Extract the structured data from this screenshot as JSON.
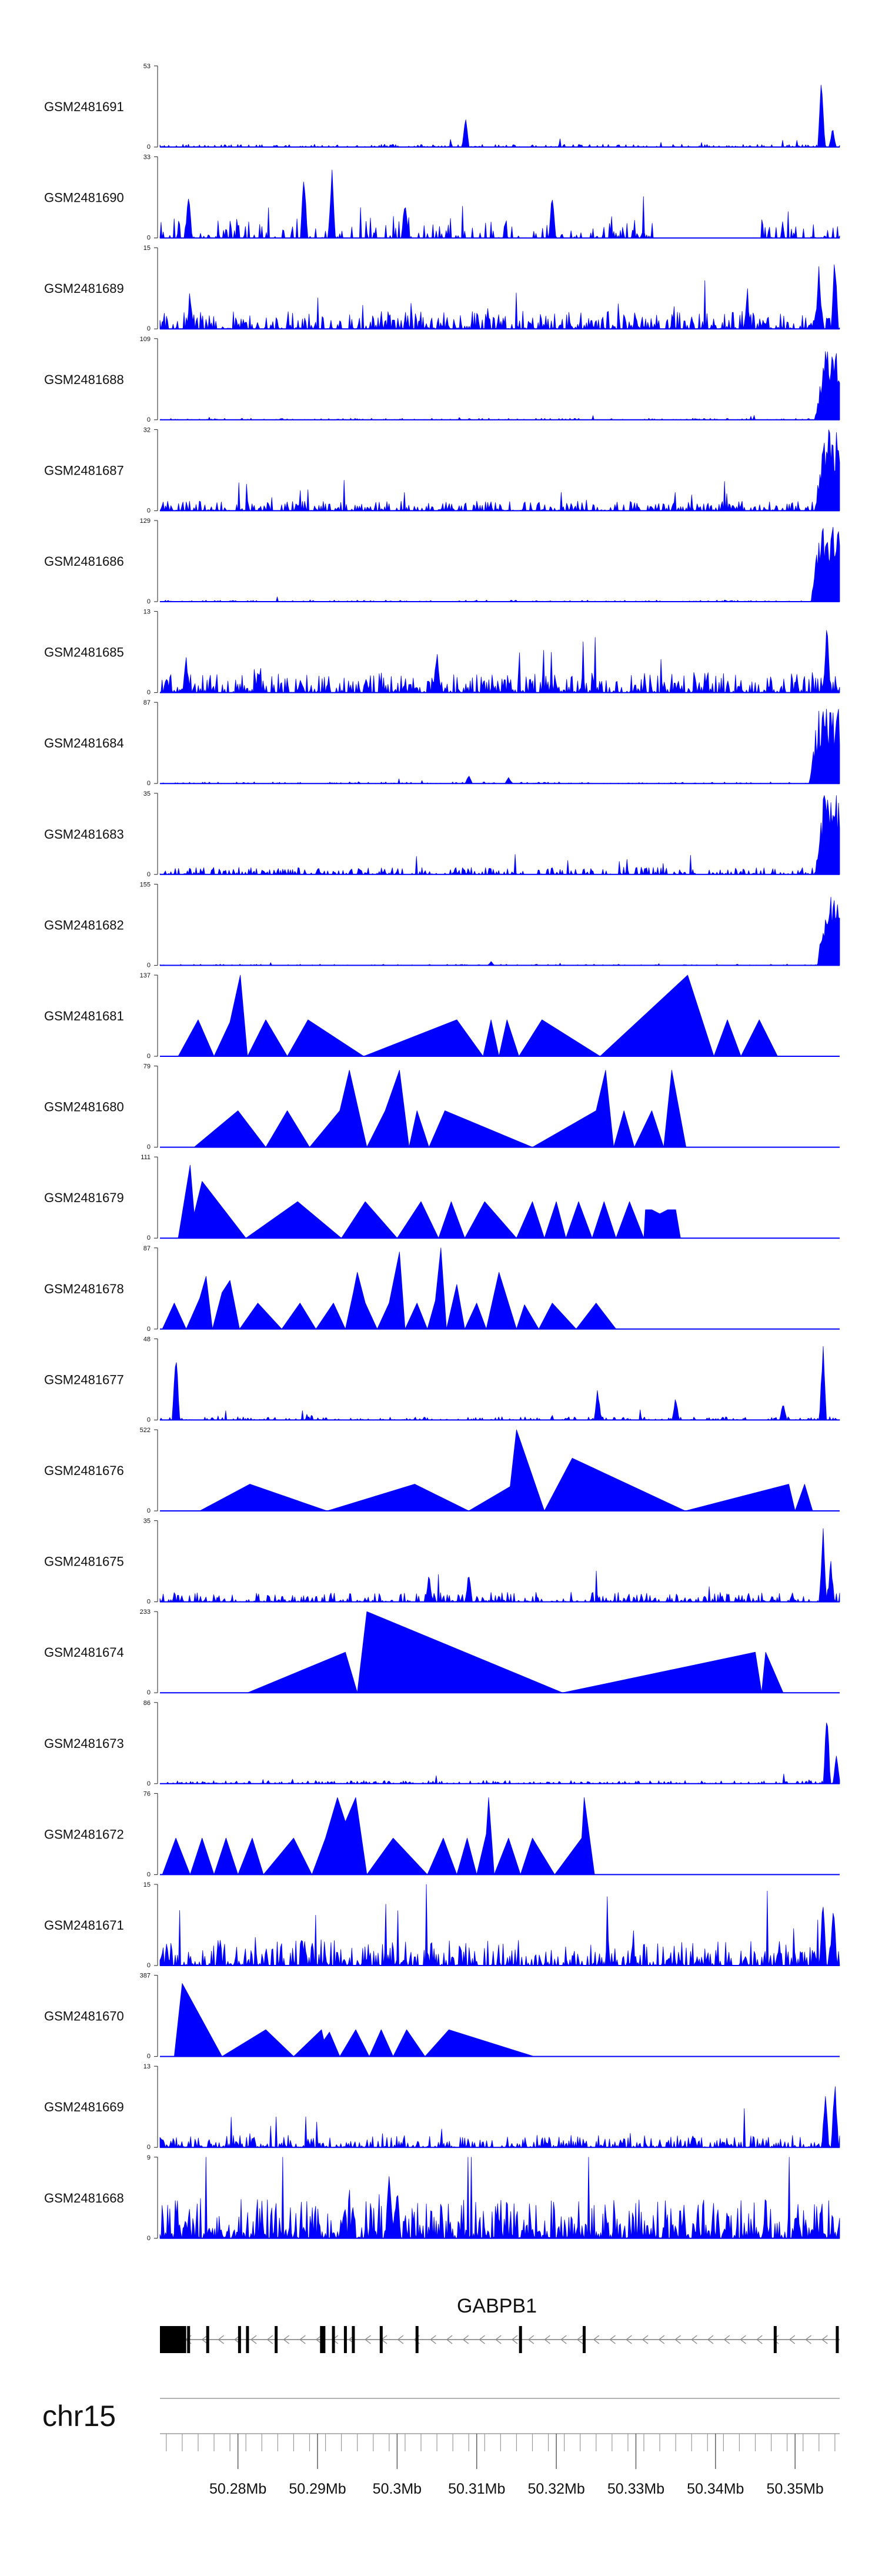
{
  "chart_data": {
    "type": "area",
    "color": "#0000ff",
    "x_range_mb": [
      50.2702,
      50.3556
    ],
    "tracks": [
      {
        "name": "GSM2481691",
        "ymax": "53",
        "ymin": "0",
        "style": "noise",
        "seed": 1,
        "base": 0.035,
        "density": 0.5,
        "peaks": [
          [
            50.3086,
            0.38
          ],
          [
            50.3533,
            1.0
          ],
          [
            50.3547,
            0.25
          ]
        ]
      },
      {
        "name": "GSM2481690",
        "ymax": "33",
        "ymin": "0",
        "style": "peaky",
        "seed": 2,
        "base": 0.28,
        "density": 0.4,
        "peaks": [
          [
            50.2738,
            0.62
          ],
          [
            50.2883,
            0.95
          ],
          [
            50.2918,
            0.94
          ],
          [
            50.301,
            0.55
          ],
          [
            50.3195,
            0.6
          ]
        ],
        "gaps": [
          [
            50.3325,
            50.3455
          ]
        ]
      },
      {
        "name": "GSM2481689",
        "ymax": "15",
        "ymin": "0",
        "style": "noise",
        "seed": 3,
        "base": 0.22,
        "density": 0.75,
        "peaks": [
          [
            50.274,
            0.4
          ],
          [
            50.344,
            0.45
          ],
          [
            50.353,
            0.8
          ],
          [
            50.355,
            1.0
          ]
        ]
      },
      {
        "name": "GSM2481688",
        "ymax": "109",
        "ymin": "0",
        "style": "noise",
        "seed": 4,
        "base": 0.02,
        "density": 0.4,
        "tail": [
          50.3525,
          0.95
        ]
      },
      {
        "name": "GSM2481687",
        "ymax": "32",
        "ymin": "0",
        "style": "noise",
        "seed": 5,
        "base": 0.12,
        "density": 0.7,
        "tail": [
          50.3525,
          1.0
        ]
      },
      {
        "name": "GSM2481686",
        "ymax": "129",
        "ymin": "0",
        "style": "noise",
        "seed": 6,
        "base": 0.02,
        "density": 0.4,
        "tail": [
          50.352,
          0.95
        ]
      },
      {
        "name": "GSM2481685",
        "ymax": "13",
        "ymin": "0",
        "style": "noise",
        "seed": 7,
        "base": 0.25,
        "density": 0.8,
        "peaks": [
          [
            50.2735,
            0.45
          ],
          [
            50.305,
            0.6
          ],
          [
            50.354,
            0.95
          ]
        ]
      },
      {
        "name": "GSM2481684",
        "ymax": "87",
        "ymin": "0",
        "style": "noise",
        "seed": 8,
        "base": 0.02,
        "density": 0.4,
        "peaks": [
          [
            50.309,
            0.12
          ],
          [
            50.314,
            0.08
          ]
        ],
        "tail": [
          50.3518,
          0.95
        ]
      },
      {
        "name": "GSM2481683",
        "ymax": "35",
        "ymin": "0",
        "style": "noise",
        "seed": 9,
        "base": 0.09,
        "density": 0.6,
        "tail": [
          50.3525,
          1.0
        ]
      },
      {
        "name": "GSM2481682",
        "ymax": "155",
        "ymin": "0",
        "style": "noise",
        "seed": 10,
        "base": 0.015,
        "density": 0.35,
        "peaks": [
          [
            50.3118,
            0.05
          ]
        ],
        "tail": [
          50.3528,
          0.95
        ]
      },
      {
        "name": "GSM2481681",
        "ymax": "137",
        "ymin": "0",
        "style": "tri",
        "points": [
          [
            50.2725,
            0
          ],
          [
            50.275,
            0.45
          ],
          [
            50.277,
            0
          ],
          [
            50.279,
            0.42
          ],
          [
            50.2803,
            1.0
          ],
          [
            50.2812,
            0
          ],
          [
            50.2835,
            0.45
          ],
          [
            50.2862,
            0
          ],
          [
            50.2888,
            0.45
          ],
          [
            50.2958,
            0
          ],
          [
            50.3075,
            0.45
          ],
          [
            50.3108,
            0
          ],
          [
            50.3118,
            0.45
          ],
          [
            50.3128,
            0
          ],
          [
            50.3138,
            0.45
          ],
          [
            50.3153,
            0
          ],
          [
            50.3182,
            0.45
          ],
          [
            50.3255,
            0
          ],
          [
            50.3365,
            1.0
          ],
          [
            50.3398,
            0
          ],
          [
            50.3415,
            0.45
          ],
          [
            50.3432,
            0
          ],
          [
            50.3455,
            0.45
          ],
          [
            50.3478,
            0
          ]
        ]
      },
      {
        "name": "GSM2481680",
        "ymax": "79",
        "ymin": "0",
        "style": "tri",
        "points": [
          [
            50.2745,
            0
          ],
          [
            50.28,
            0.45
          ],
          [
            50.2835,
            0
          ],
          [
            50.2862,
            0.45
          ],
          [
            50.289,
            0
          ],
          [
            50.2928,
            0.45
          ],
          [
            50.294,
            0.95
          ],
          [
            50.2962,
            0
          ],
          [
            50.2985,
            0.45
          ],
          [
            50.3003,
            0.95
          ],
          [
            50.3015,
            0
          ],
          [
            50.3025,
            0.45
          ],
          [
            50.304,
            0
          ],
          [
            50.306,
            0.45
          ],
          [
            50.317,
            0
          ],
          [
            50.325,
            0.45
          ],
          [
            50.3262,
            0.95
          ],
          [
            50.3272,
            0
          ],
          [
            50.3285,
            0.45
          ],
          [
            50.3298,
            0
          ],
          [
            50.332,
            0.45
          ],
          [
            50.3335,
            0
          ],
          [
            50.3345,
            0.95
          ],
          [
            50.3363,
            0
          ]
        ]
      },
      {
        "name": "GSM2481679",
        "ymax": "111",
        "ymin": "0",
        "style": "tri",
        "points": [
          [
            50.2725,
            0
          ],
          [
            50.274,
            0.9
          ],
          [
            50.2745,
            0.3
          ],
          [
            50.2755,
            0.7
          ],
          [
            50.281,
            0
          ],
          [
            50.2875,
            0.45
          ],
          [
            50.293,
            0
          ],
          [
            50.296,
            0.45
          ],
          [
            50.3,
            0
          ],
          [
            50.303,
            0.45
          ],
          [
            50.3052,
            0
          ],
          [
            50.3068,
            0.45
          ],
          [
            50.3085,
            0
          ],
          [
            50.311,
            0.45
          ],
          [
            50.315,
            0
          ],
          [
            50.317,
            0.45
          ],
          [
            50.3185,
            0
          ],
          [
            50.32,
            0.45
          ],
          [
            50.3212,
            0
          ],
          [
            50.3228,
            0.45
          ],
          [
            50.3245,
            0
          ],
          [
            50.326,
            0.45
          ],
          [
            50.3275,
            0
          ],
          [
            50.3292,
            0.45
          ],
          [
            50.331,
            0
          ],
          [
            50.3312,
            0.35
          ],
          [
            50.332,
            0.35
          ],
          [
            50.333,
            0.3
          ],
          [
            50.334,
            0.35
          ],
          [
            50.335,
            0.35
          ],
          [
            50.3356,
            0
          ]
        ]
      },
      {
        "name": "GSM2481678",
        "ymax": "87",
        "ymin": "0",
        "style": "tri",
        "points": [
          [
            50.2705,
            0
          ],
          [
            50.272,
            0.32
          ],
          [
            50.2735,
            0
          ],
          [
            50.2752,
            0.38
          ],
          [
            50.276,
            0.65
          ],
          [
            50.2768,
            0
          ],
          [
            50.278,
            0.45
          ],
          [
            50.279,
            0.6
          ],
          [
            50.2802,
            0
          ],
          [
            50.2825,
            0.32
          ],
          [
            50.2855,
            0
          ],
          [
            50.2878,
            0.32
          ],
          [
            50.2898,
            0
          ],
          [
            50.292,
            0.32
          ],
          [
            50.2935,
            0
          ],
          [
            50.2945,
            0.45
          ],
          [
            50.295,
            0.7
          ],
          [
            50.296,
            0.32
          ],
          [
            50.2975,
            0
          ],
          [
            50.299,
            0.32
          ],
          [
            50.3003,
            0.95
          ],
          [
            50.301,
            0
          ],
          [
            50.3025,
            0.32
          ],
          [
            50.3038,
            0
          ],
          [
            50.3048,
            0.35
          ],
          [
            50.3055,
            1.0
          ],
          [
            50.3062,
            0
          ],
          [
            50.3075,
            0.55
          ],
          [
            50.3085,
            0
          ],
          [
            50.31,
            0.32
          ],
          [
            50.3112,
            0
          ],
          [
            50.3128,
            0.7
          ],
          [
            50.315,
            0
          ],
          [
            50.316,
            0.3
          ],
          [
            50.3178,
            0
          ],
          [
            50.3195,
            0.32
          ],
          [
            50.3225,
            0
          ],
          [
            50.325,
            0.32
          ],
          [
            50.3275,
            0
          ]
        ]
      },
      {
        "name": "GSM2481677",
        "ymax": "48",
        "ymin": "0",
        "style": "noise",
        "seed": 11,
        "base": 0.04,
        "density": 0.5,
        "peaks": [
          [
            50.2722,
            1.0
          ],
          [
            50.3252,
            0.4
          ],
          [
            50.335,
            0.3
          ],
          [
            50.3485,
            0.25
          ],
          [
            50.3535,
            1.0
          ]
        ]
      },
      {
        "name": "GSM2481676",
        "ymax": "522",
        "ymin": "0",
        "style": "tri",
        "points": [
          [
            50.2752,
            0
          ],
          [
            50.2815,
            0.33
          ],
          [
            50.2912,
            0
          ],
          [
            50.3022,
            0.33
          ],
          [
            50.309,
            0
          ],
          [
            50.3142,
            0.3
          ],
          [
            50.315,
            1.0
          ],
          [
            50.3185,
            0
          ],
          [
            50.322,
            0.65
          ],
          [
            50.3362,
            0
          ],
          [
            50.3492,
            0.33
          ],
          [
            50.35,
            0
          ],
          [
            50.3512,
            0.33
          ],
          [
            50.3522,
            0
          ]
        ]
      },
      {
        "name": "GSM2481675",
        "ymax": "35",
        "ymin": "0",
        "style": "noise",
        "seed": 12,
        "base": 0.12,
        "density": 0.7,
        "peaks": [
          [
            50.304,
            0.35
          ],
          [
            50.309,
            0.4
          ],
          [
            50.3535,
            1.0
          ],
          [
            50.3545,
            0.55
          ]
        ]
      },
      {
        "name": "GSM2481674",
        "ymax": "233",
        "ymin": "0",
        "style": "tri",
        "points": [
          [
            50.2812,
            0
          ],
          [
            50.2935,
            0.5
          ],
          [
            50.295,
            0
          ],
          [
            50.2962,
            1.0
          ],
          [
            50.3208,
            0
          ],
          [
            50.345,
            0.5
          ],
          [
            50.3458,
            0
          ],
          [
            50.3463,
            0.5
          ],
          [
            50.3485,
            0
          ]
        ]
      },
      {
        "name": "GSM2481673",
        "ymax": "86",
        "ymin": "0",
        "style": "noise",
        "seed": 13,
        "base": 0.04,
        "density": 0.55,
        "peaks": [
          [
            50.354,
            1.0
          ],
          [
            50.3552,
            0.4
          ]
        ]
      },
      {
        "name": "GSM2481672",
        "ymax": "76",
        "ymin": "0",
        "style": "tri",
        "points": [
          [
            50.2705,
            0
          ],
          [
            50.2722,
            0.45
          ],
          [
            50.274,
            0
          ],
          [
            50.2755,
            0.45
          ],
          [
            50.277,
            0
          ],
          [
            50.2785,
            0.45
          ],
          [
            50.28,
            0
          ],
          [
            50.2818,
            0.45
          ],
          [
            50.2832,
            0
          ],
          [
            50.287,
            0.45
          ],
          [
            50.2893,
            0
          ],
          [
            50.291,
            0.45
          ],
          [
            50.2925,
            0.95
          ],
          [
            50.2935,
            0.65
          ],
          [
            50.2948,
            0.95
          ],
          [
            50.2962,
            0
          ],
          [
            50.2995,
            0.45
          ],
          [
            50.3038,
            0
          ],
          [
            50.3058,
            0.45
          ],
          [
            50.3075,
            0
          ],
          [
            50.3088,
            0.45
          ],
          [
            50.31,
            0
          ],
          [
            50.3112,
            0.5
          ],
          [
            50.3115,
            0.95
          ],
          [
            50.3122,
            0
          ],
          [
            50.314,
            0.45
          ],
          [
            50.3155,
            0
          ],
          [
            50.317,
            0.45
          ],
          [
            50.3198,
            0
          ],
          [
            50.3232,
            0.45
          ],
          [
            50.3235,
            0.95
          ],
          [
            50.3248,
            0
          ],
          [
            50.3268,
            0
          ]
        ]
      },
      {
        "name": "GSM2481671",
        "ymax": "15",
        "ymin": "0",
        "style": "noise",
        "seed": 14,
        "base": 0.32,
        "density": 0.75,
        "peaks": [
          [
            50.3535,
            0.9
          ],
          [
            50.3548,
            0.9
          ]
        ]
      },
      {
        "name": "GSM2481670",
        "ymax": "387",
        "ymin": "0",
        "style": "tri",
        "points": [
          [
            50.272,
            0
          ],
          [
            50.273,
            0.9
          ],
          [
            50.278,
            0
          ],
          [
            50.2835,
            0.33
          ],
          [
            50.287,
            0
          ],
          [
            50.2905,
            0.33
          ],
          [
            50.2908,
            0.2
          ],
          [
            50.2915,
            0.3
          ],
          [
            50.2928,
            0
          ],
          [
            50.2948,
            0.33
          ],
          [
            50.2965,
            0
          ],
          [
            50.298,
            0.33
          ],
          [
            50.2995,
            0
          ],
          [
            50.3012,
            0.33
          ],
          [
            50.3035,
            0
          ],
          [
            50.3065,
            0.33
          ],
          [
            50.3172,
            0
          ]
        ]
      },
      {
        "name": "GSM2481669",
        "ymax": "13",
        "ymin": "0",
        "style": "noise",
        "seed": 15,
        "base": 0.15,
        "density": 0.75,
        "peaks": [
          [
            50.3538,
            0.75
          ],
          [
            50.355,
            0.95
          ]
        ]
      },
      {
        "name": "GSM2481668",
        "ymax": "9",
        "ymin": "0",
        "style": "noise",
        "seed": 16,
        "base": 0.48,
        "density": 0.9,
        "peaks": [
          [
            50.299,
            0.95
          ],
          [
            50.3,
            0.75
          ]
        ]
      }
    ],
    "gene": {
      "name": "GABPB1",
      "strand": "-",
      "thick_start": 50.2702,
      "thick_end": 50.2735,
      "exons": [
        50.2738,
        50.2762,
        50.2802,
        50.2812,
        50.2848,
        50.2905,
        50.2908,
        50.292,
        50.2935,
        50.2945,
        50.298,
        50.3025,
        50.3155,
        50.3235,
        50.3475,
        50.3553
      ]
    },
    "axis": {
      "chrom": "chr15",
      "ticks": [
        50.28,
        50.29,
        50.3,
        50.31,
        50.32,
        50.33,
        50.34,
        50.35
      ],
      "tick_labels": [
        "50.28Mb",
        "50.29Mb",
        "50.3Mb",
        "50.31Mb",
        "50.32Mb",
        "50.33Mb",
        "50.34Mb",
        "50.35Mb"
      ],
      "minor_step": 0.002
    }
  }
}
